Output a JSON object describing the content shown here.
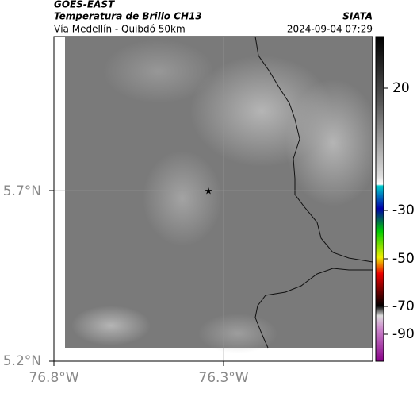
{
  "header": {
    "title": "GOES-EAST",
    "subtitle": "Temperatura de Brillo CH13",
    "location": "Vía Medellín - Quibdó 50km",
    "source": "SIATA",
    "datetime": "2024-09-04 07:29"
  },
  "map": {
    "lat_labels": [
      "5.7°N",
      "5.2°N"
    ],
    "lon_labels": [
      "76.8°W",
      "76.3°W"
    ]
  },
  "colorbar": {
    "tick_labels": [
      "20",
      "-30",
      "-50",
      "-70",
      "-90"
    ]
  }
}
